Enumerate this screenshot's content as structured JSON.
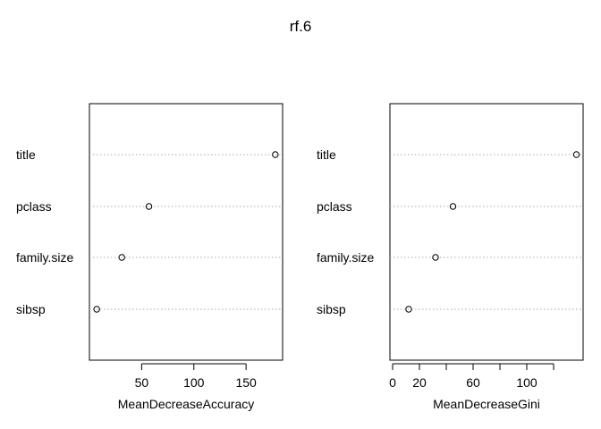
{
  "title": "rf.6",
  "chart_data": [
    {
      "type": "scatter",
      "subtype": "dotchart",
      "categories": [
        "title",
        "pclass",
        "family.size",
        "sibsp"
      ],
      "values": [
        178,
        57,
        31,
        7
      ],
      "xlabel": "MeanDecreaseAccuracy",
      "xticks": [
        50,
        100,
        150
      ],
      "xlim": [
        0,
        185
      ],
      "grid": "dotted horizontal lines per category"
    },
    {
      "type": "scatter",
      "subtype": "dotchart",
      "categories": [
        "title",
        "pclass",
        "family.size",
        "sibsp"
      ],
      "values": [
        137,
        45,
        32,
        12
      ],
      "xlabel": "MeanDecreaseGini",
      "xticks": [
        0,
        20,
        60,
        100
      ],
      "minor_xticks": [
        40,
        80,
        120
      ],
      "xlim": [
        -2,
        142
      ],
      "grid": "dotted horizontal lines per category"
    }
  ]
}
